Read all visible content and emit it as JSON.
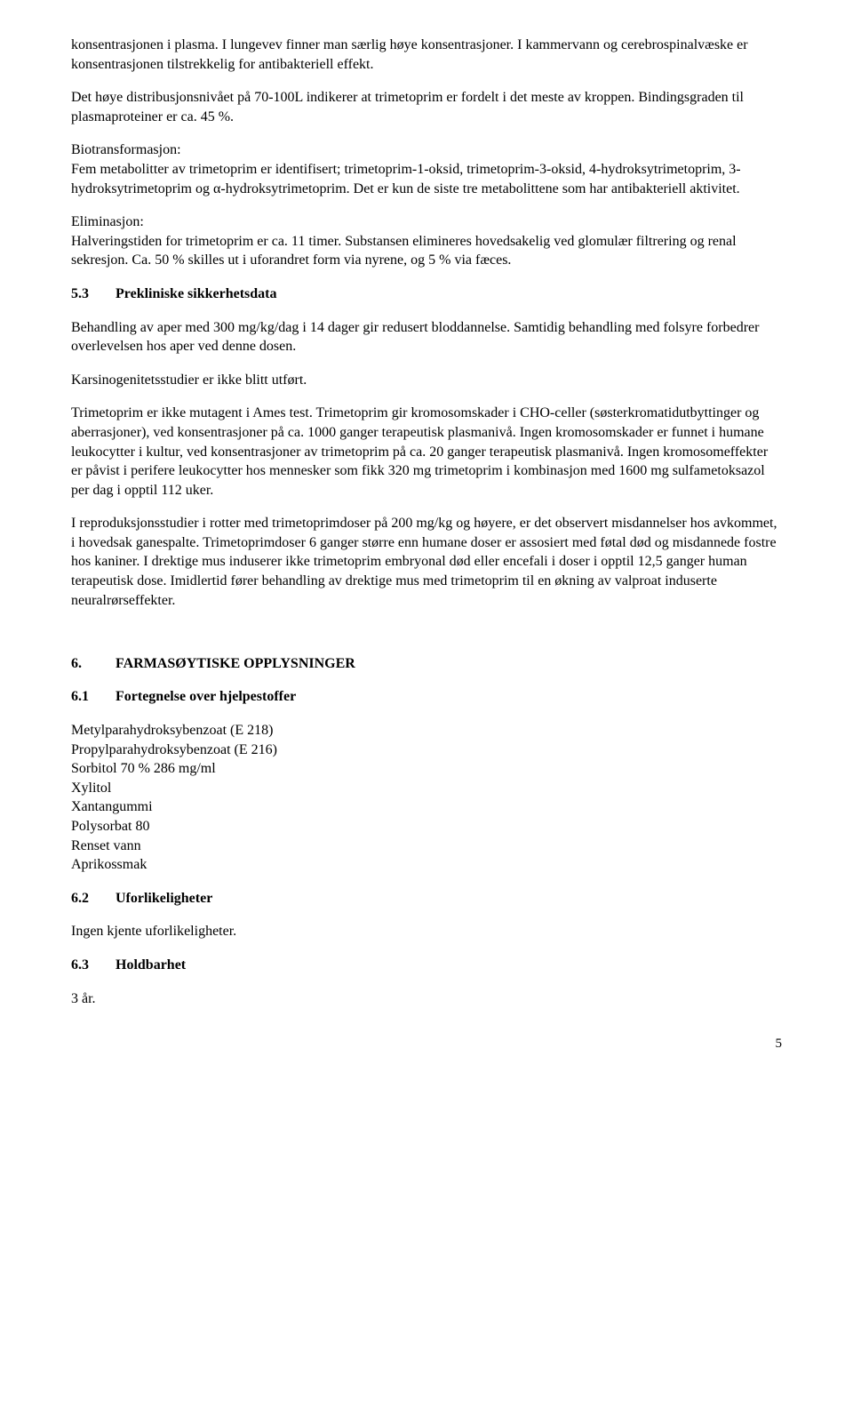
{
  "p1": "konsentrasjonen i plasma. I lungevev finner man særlig høye konsentrasjoner. I kammervann og cerebrospinalvæske er konsentrasjonen tilstrekkelig for antibakteriell effekt.",
  "p2": "Det høye distribusjonsnivået på 70-100L indikerer at trimetoprim er fordelt i det meste av kroppen. Bindingsgraden til plasmaproteiner er ca. 45 %.",
  "biotransform_label": "Biotransformasjon:",
  "p3": "Fem metabolitter av trimetoprim er identifisert; trimetoprim-1-oksid, trimetoprim-3-oksid, 4-hydroksytrimetoprim, 3-hydroksytrimetoprim og α-hydroksytrimetoprim. Det er kun de siste tre metabolittene som har antibakteriell aktivitet.",
  "elim_label": "Eliminasjon:",
  "p4": "Halveringstiden for trimetoprim er ca. 11 timer. Substansen elimineres hovedsakelig ved glomulær filtrering og renal sekresjon. Ca. 50 % skilles ut i uforandret form via nyrene, og 5 % via fæces.",
  "s53_num": "5.3",
  "s53_title": "Prekliniske sikkerhetsdata",
  "p5": "Behandling av aper med 300 mg/kg/dag i 14 dager gir redusert bloddannelse. Samtidig behandling med folsyre forbedrer overlevelsen hos aper ved denne dosen.",
  "p6": "Karsinogenitetsstudier er ikke blitt utført.",
  "p7": "Trimetoprim er ikke mutagent i Ames test. Trimetoprim gir kromosomskader i CHO-celler (søsterkromatidutbyttinger og aberrasjoner), ved konsentrasjoner på ca. 1000 ganger terapeutisk plasmanivå. Ingen kromosomskader er funnet i humane leukocytter i kultur, ved konsentrasjoner av trimetoprim på ca. 20 ganger terapeutisk plasmanivå. Ingen kromosomeffekter er påvist i perifere leukocytter hos mennesker som fikk 320 mg trimetoprim i kombinasjon med 1600 mg sulfametoksazol per dag i opptil 112 uker.",
  "p8": "I reproduksjonsstudier i rotter med trimetoprimdoser på 200 mg/kg og høyere, er det observert misdannelser hos avkommet, i hovedsak ganespalte. Trimetoprimdoser 6 ganger større enn humane doser er assosiert med føtal død og misdannede fostre hos kaniner. I drektige mus induserer ikke trimetoprim embryonal død eller encefali i doser i opptil 12,5 ganger human terapeutisk dose. Imidlertid fører behandling av drektige mus med trimetoprim til en økning av valproat induserte neuralrørseffekter.",
  "s6_num": "6.",
  "s6_title": "FARMASØYTISKE OPPLYSNINGER",
  "s61_num": "6.1",
  "s61_title": "Fortegnelse over hjelpestoffer",
  "excipients": {
    "e1": "Metylparahydroksybenzoat (E 218)",
    "e2": "Propylparahydroksybenzoat (E 216)",
    "e3": "Sorbitol 70 % 286 mg/ml",
    "e4": "Xylitol",
    "e5": "Xantangummi",
    "e6": "Polysorbat 80",
    "e7": "Renset vann",
    "e8": "Aprikossmak"
  },
  "s62_num": "6.2",
  "s62_title": "Uforlikeligheter",
  "p9": "Ingen kjente uforlikeligheter.",
  "s63_num": "6.3",
  "s63_title": "Holdbarhet",
  "p10": "3 år.",
  "page_number": "5"
}
